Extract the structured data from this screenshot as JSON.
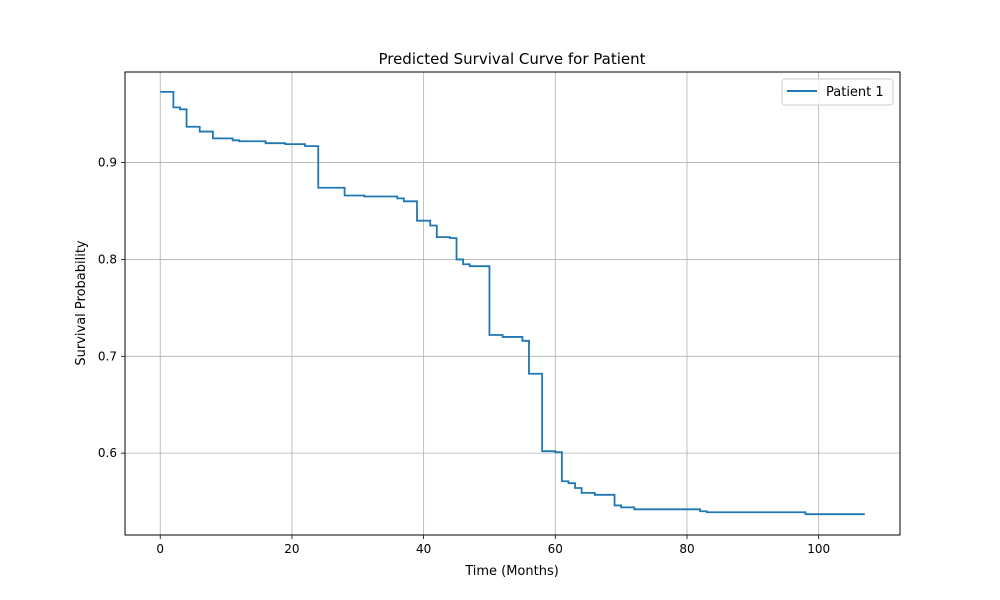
{
  "chart_data": {
    "type": "line",
    "step": true,
    "title": "Predicted Survival Curve for Patient",
    "xlabel": "Time (Months)",
    "ylabel": "Survival Probability",
    "xlim": [
      -5.35,
      112.35
    ],
    "ylim": [
      0.5155,
      0.9935
    ],
    "xticks": [
      0,
      20,
      40,
      60,
      80,
      100
    ],
    "yticks": [
      0.6,
      0.7,
      0.8,
      0.9
    ],
    "xtick_labels": [
      "0",
      "20",
      "40",
      "60",
      "80",
      "100"
    ],
    "ytick_labels": [
      "0.6",
      "0.7",
      "0.8",
      "0.9"
    ],
    "grid": true,
    "legend": "top-right",
    "series": [
      {
        "name": "Patient 1",
        "color": "#1f77b4",
        "x": [
          0,
          2,
          3,
          4,
          6,
          8,
          11,
          12,
          16,
          19,
          22,
          24,
          28,
          31,
          36,
          37,
          39,
          41,
          42,
          44,
          45,
          46,
          47,
          50,
          52,
          55,
          56,
          58,
          60,
          61,
          62,
          63,
          64,
          66,
          69,
          70,
          72,
          82,
          83,
          98,
          107
        ],
        "y": [
          0.973,
          0.957,
          0.955,
          0.937,
          0.932,
          0.925,
          0.923,
          0.922,
          0.92,
          0.919,
          0.917,
          0.874,
          0.866,
          0.865,
          0.863,
          0.86,
          0.84,
          0.835,
          0.823,
          0.822,
          0.8,
          0.795,
          0.793,
          0.722,
          0.72,
          0.716,
          0.682,
          0.602,
          0.601,
          0.571,
          0.569,
          0.564,
          0.559,
          0.557,
          0.546,
          0.544,
          0.542,
          0.54,
          0.539,
          0.537,
          0.537
        ]
      }
    ]
  }
}
